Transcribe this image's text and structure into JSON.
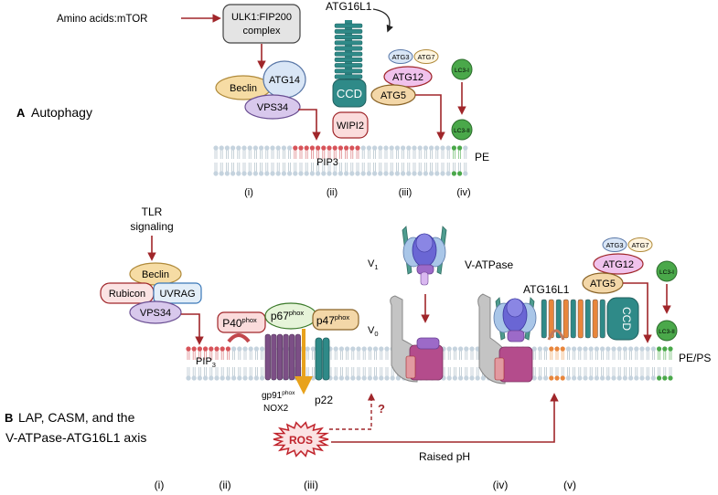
{
  "autophagy": {
    "panel_letter": "A",
    "panel_title": "Autophagy",
    "trigger": "Amino acids:mTOR",
    "ulk1_line1": "ULK1:FIP200",
    "ulk1_line2": "complex",
    "beclin": "Beclin",
    "atg14": "ATG14",
    "vps34": "VPS34",
    "atg16l1": "ATG16L1",
    "ccd": "CCD",
    "wipi2": "WIPI2",
    "pip3": "PIP3",
    "atg3": "ATG3",
    "atg7": "ATG7",
    "atg12": "ATG12",
    "atg5": "ATG5",
    "lc3i": "LC3-I",
    "lc3ii": "LC3-II",
    "pe": "PE",
    "steps": [
      "(i)",
      "(ii)",
      "(iii)",
      "(iv)"
    ]
  },
  "lap": {
    "panel_letter": "B",
    "panel_title_line1": "LAP, CASM, and the",
    "panel_title_line2": "V-ATPase-ATG16L1 axis",
    "tlr_line1": "TLR",
    "tlr_line2": "signaling",
    "beclin": "Beclin",
    "rubicon": "Rubicon",
    "uvrag": "UVRAG",
    "vps34": "VPS34",
    "pip3": "PIP",
    "pip3_sub": "3",
    "p40": "P40",
    "p67": "p67",
    "p47": "p47",
    "phox": "phox",
    "gp91": "gp91",
    "nox2": "NOX2",
    "p22": "p22",
    "ros": "ROS",
    "question": "?",
    "raised_ph": "Raised pH",
    "v1": "V",
    "v1_sub": "1",
    "v0": "V",
    "v0_sub": "0",
    "vatpase": "V-ATPase",
    "atg16l1": "ATG16L1",
    "ccd": "CCD",
    "atg3": "ATG3",
    "atg7": "ATG7",
    "atg12": "ATG12",
    "atg5": "ATG5",
    "lc3i": "LC3-I",
    "lc3ii": "LC3-II",
    "pe_ps": "PE/PS",
    "steps": [
      "(i)",
      "(ii)",
      "(iii)",
      "(iv)",
      "(v)"
    ]
  },
  "colors": {
    "arrow": "#a0262a",
    "membrane_head": "#c5d3de",
    "membrane_tail": "#b9c6cf",
    "pip_head": "#d7545a",
    "lc3_green": "#4aa84a",
    "ccd_teal": "#2f8a88",
    "nox_purple": "#7c4f86",
    "ros_red": "#c0232b",
    "beclin_fill": "#f6dca4",
    "vps34_fill": "#d8c8ec",
    "atg12_fill": "#f0c2ec",
    "atg5_fill": "#f3d7a8",
    "rubicon_fill": "#fbe3e3",
    "uvrag_fill": "#e3eef8"
  }
}
